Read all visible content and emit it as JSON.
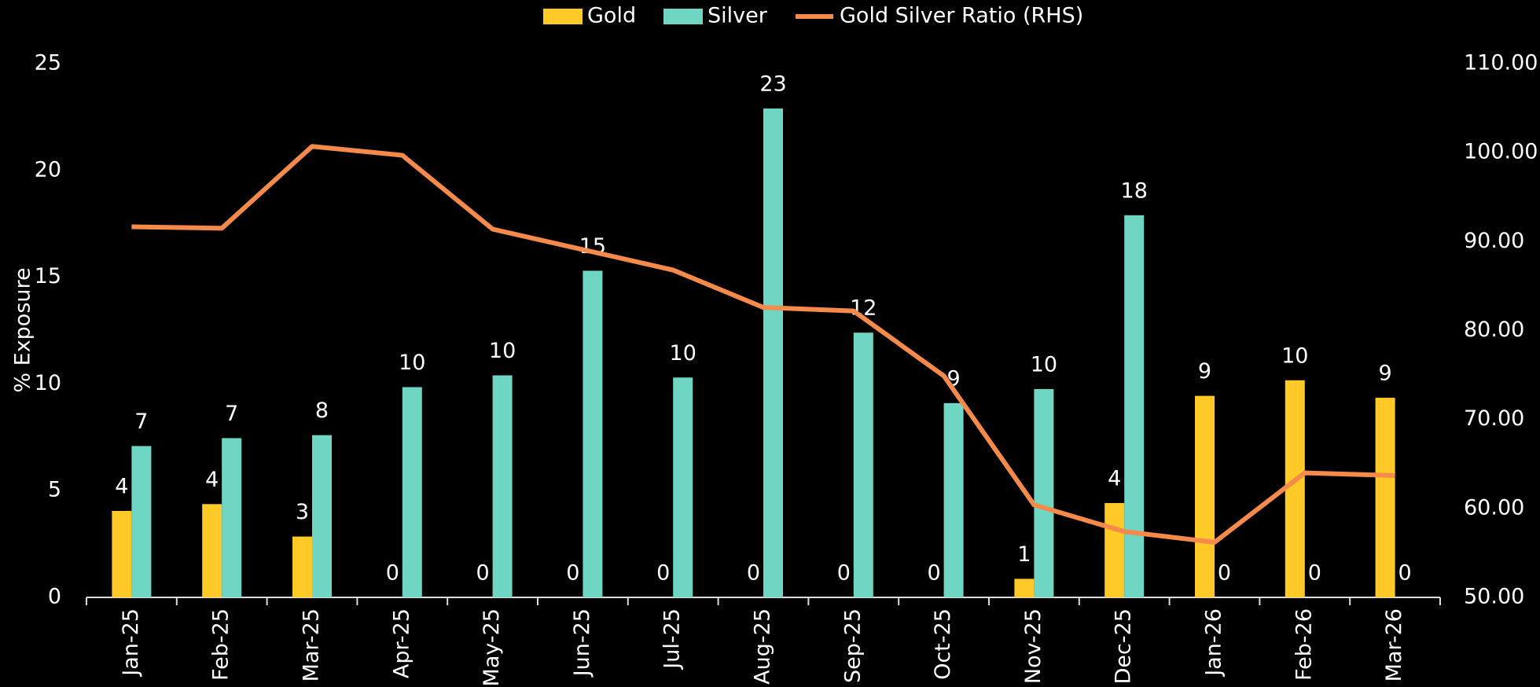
{
  "chart_data": {
    "type": "bar",
    "y_label": "% Exposure",
    "categories": [
      "Jan-25",
      "Feb-25",
      "Mar-25",
      "Apr-25",
      "May-25",
      "Jun-25",
      "Jul-25",
      "Aug-25",
      "Sep-25",
      "Oct-25",
      "Nov-25",
      "Dec-25",
      "Jan-26",
      "Feb-26",
      "Mar-26"
    ],
    "series": [
      {
        "name": "Gold",
        "type": "bar",
        "color": "#ffca28",
        "values": [
          4.05,
          4.37,
          2.85,
          0,
          0,
          0,
          0,
          0,
          0,
          0,
          0.87,
          4.42,
          9.44,
          10.17,
          9.35
        ],
        "value_labels": [
          "4",
          "4",
          "3",
          "0",
          "0",
          "0",
          "0",
          "0",
          "0",
          "0",
          "1",
          "4",
          "9",
          "10",
          "9"
        ]
      },
      {
        "name": "Silver",
        "type": "bar",
        "color": "#6fd6c4",
        "values": [
          7.09,
          7.46,
          7.6,
          9.85,
          10.4,
          15.3,
          10.3,
          22.9,
          12.4,
          9.1,
          9.76,
          17.9,
          0,
          0,
          0
        ],
        "value_labels": [
          "7",
          "7",
          "8",
          "10",
          "10",
          "15",
          "10",
          "23",
          "12",
          "9",
          "10",
          "18",
          "0",
          "0",
          "0"
        ]
      },
      {
        "name": "Gold Silver Ratio (RHS)",
        "type": "line",
        "axis": "y2",
        "color": "#f58a4b",
        "values": [
          91.66,
          91.5,
          100.7,
          99.7,
          91.4,
          89.1,
          86.8,
          82.6,
          82.2,
          74.9,
          60.4,
          57.4,
          56.2,
          64.0,
          63.7
        ]
      }
    ],
    "ylim": [
      0,
      25
    ],
    "yticks": [
      0,
      5,
      10,
      15,
      20,
      25
    ],
    "y2lim": [
      50,
      110
    ],
    "y2ticks": [
      {
        "value": 50,
        "label": "50.00"
      },
      {
        "value": 60,
        "label": "60.00"
      },
      {
        "value": 70,
        "label": "70.00"
      },
      {
        "value": 80,
        "label": "80.00"
      },
      {
        "value": 90,
        "label": "90.00"
      },
      {
        "value": 100,
        "label": "100.00"
      },
      {
        "value": 110,
        "label": "110.00"
      }
    ],
    "legend": "top",
    "grid": false
  }
}
